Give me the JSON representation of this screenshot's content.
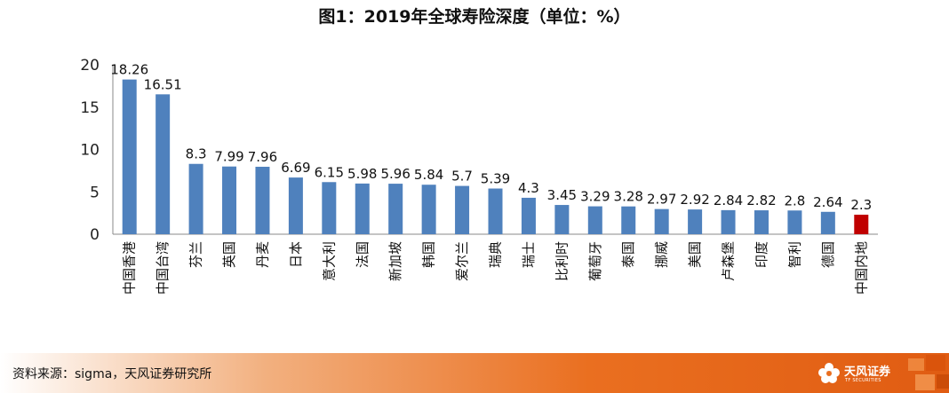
{
  "chart_data": {
    "type": "bar",
    "title": "图1：2019年全球寿险深度（单位：%）",
    "categories": [
      "中国香港",
      "中国台湾",
      "芬兰",
      "英国",
      "丹麦",
      "日本",
      "意大利",
      "法国",
      "新加坡",
      "韩国",
      "爱尔兰",
      "瑞典",
      "瑞士",
      "比利时",
      "葡萄牙",
      "泰国",
      "挪威",
      "美国",
      "卢森堡",
      "印度",
      "智利",
      "德国",
      "中国内地"
    ],
    "values": [
      18.26,
      16.51,
      8.3,
      7.99,
      7.96,
      6.69,
      6.15,
      5.98,
      5.96,
      5.84,
      5.7,
      5.39,
      4.3,
      3.45,
      3.29,
      3.28,
      2.97,
      2.92,
      2.84,
      2.82,
      2.8,
      2.64,
      2.3
    ],
    "value_labels": [
      "18.26",
      "16.51",
      "8.3",
      "7.99",
      "7.96",
      "6.69",
      "6.15",
      "5.98",
      "5.96",
      "5.84",
      "5.7",
      "5.39",
      "4.3",
      "3.45",
      "3.29",
      "3.28",
      "2.97",
      "2.92",
      "2.84",
      "2.82",
      "2.8",
      "2.64",
      "2.3"
    ],
    "ylim": [
      0,
      20
    ],
    "yticks": [
      "0",
      "5",
      "10",
      "15",
      "20"
    ],
    "grid": false,
    "colors": {
      "bar": "#4f81bd",
      "highlight": "#c00000",
      "highlight_index": 22
    }
  },
  "footer": {
    "source": "资料来源：sigma，天风证券研究所",
    "logo_text": "天风证券",
    "logo_sub": "TF SECURITIES"
  }
}
